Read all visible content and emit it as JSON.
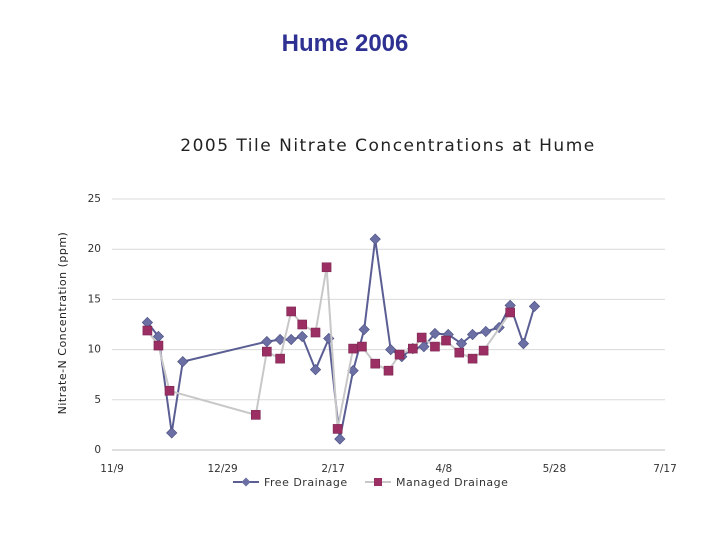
{
  "slide_title": "Hume 2006",
  "chart_data": {
    "type": "line",
    "title": "2005 Tile Nitrate Concentrations at Hume",
    "xlabel": "",
    "ylabel": "Nitrate-N Concentration (ppm)",
    "ylim": [
      0,
      25
    ],
    "y_ticks": [
      "0",
      "5",
      "10",
      "15",
      "20",
      "25"
    ],
    "x_ticks": [
      "11/9",
      "12/29",
      "2/17",
      "4/8",
      "5/28",
      "7/17"
    ],
    "x_tick_values": [
      "2004-11-09",
      "2004-12-29",
      "2005-02-17",
      "2005-04-08",
      "2005-05-28",
      "2005-07-17"
    ],
    "grid": "horizontal",
    "legend_position": "bottom",
    "series": [
      {
        "name": "Free Drainage",
        "color": "#6b6fa3",
        "marker": "diamond",
        "points": [
          [
            "2004-11-25",
            12.7
          ],
          [
            "2004-11-30",
            11.3
          ],
          [
            "2004-12-06",
            1.7
          ],
          [
            "2004-12-11",
            8.8
          ],
          [
            "2005-01-18",
            10.8
          ],
          [
            "2005-01-24",
            11.0
          ],
          [
            "2005-01-29",
            11.0
          ],
          [
            "2005-02-03",
            11.3
          ],
          [
            "2005-02-09",
            8.0
          ],
          [
            "2005-02-15",
            11.1
          ],
          [
            "2005-02-20",
            1.1
          ],
          [
            "2005-02-26",
            7.9
          ],
          [
            "2005-03-03",
            12.0
          ],
          [
            "2005-03-08",
            21.0
          ],
          [
            "2005-03-15",
            10.0
          ],
          [
            "2005-03-20",
            9.3
          ],
          [
            "2005-03-25",
            10.1
          ],
          [
            "2005-03-30",
            10.3
          ],
          [
            "2005-04-04",
            11.6
          ],
          [
            "2005-04-10",
            11.5
          ],
          [
            "2005-04-16",
            10.6
          ],
          [
            "2005-04-21",
            11.5
          ],
          [
            "2005-04-27",
            11.8
          ],
          [
            "2005-05-03",
            12.2
          ],
          [
            "2005-05-08",
            14.4
          ],
          [
            "2005-05-14",
            10.6
          ],
          [
            "2005-05-19",
            14.3
          ]
        ]
      },
      {
        "name": "Managed Drainage",
        "color": "#9b2f63",
        "marker": "square",
        "points": [
          [
            "2004-11-25",
            11.9
          ],
          [
            "2004-11-30",
            10.4
          ],
          [
            "2004-12-05",
            5.9
          ],
          [
            "2005-01-13",
            3.5
          ],
          [
            "2005-01-18",
            9.8
          ],
          [
            "2005-01-24",
            9.1
          ],
          [
            "2005-01-29",
            13.8
          ],
          [
            "2005-02-03",
            12.5
          ],
          [
            "2005-02-09",
            11.7
          ],
          [
            "2005-02-14",
            18.2
          ],
          [
            "2005-02-19",
            2.1
          ],
          [
            "2005-02-26",
            10.1
          ],
          [
            "2005-03-02",
            10.3
          ],
          [
            "2005-03-08",
            8.6
          ],
          [
            "2005-03-14",
            7.9
          ],
          [
            "2005-03-19",
            9.5
          ],
          [
            "2005-03-25",
            10.1
          ],
          [
            "2005-03-29",
            11.2
          ],
          [
            "2005-04-04",
            10.3
          ],
          [
            "2005-04-09",
            10.9
          ],
          [
            "2005-04-15",
            9.7
          ],
          [
            "2005-04-21",
            9.1
          ],
          [
            "2005-04-26",
            9.9
          ],
          [
            "2005-05-08",
            13.7
          ]
        ]
      }
    ]
  }
}
